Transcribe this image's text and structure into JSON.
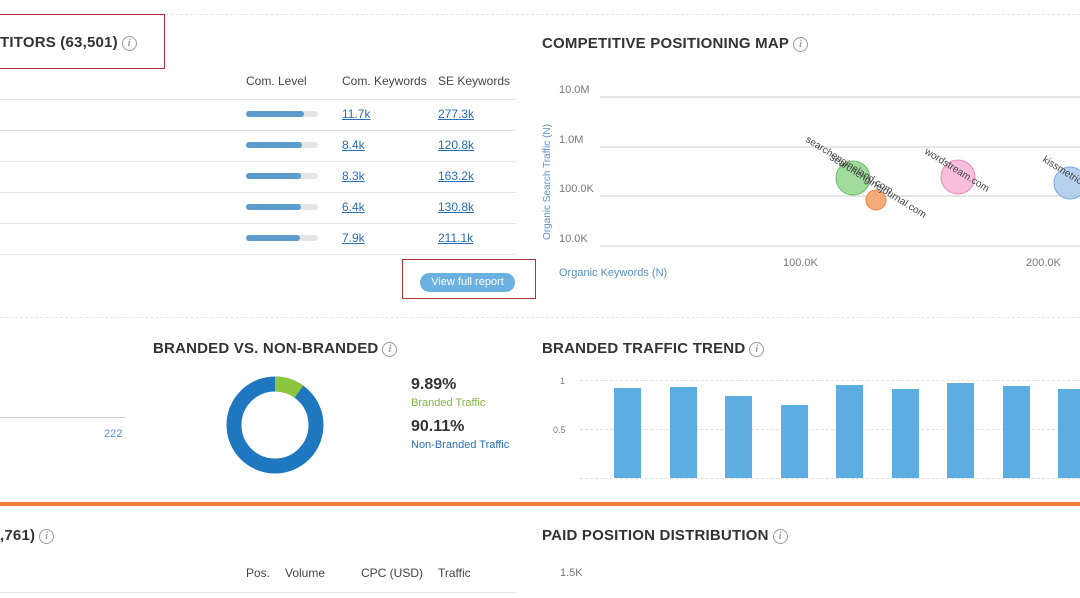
{
  "competitors": {
    "title": "TITORS (63,501)",
    "info": "i",
    "columns": {
      "level": "Com. Level",
      "com_keywords": "Com. Keywords",
      "se_keywords": "SE Keywords"
    },
    "rows": [
      {
        "level": 0.8,
        "com_keywords": "11.7k",
        "se_keywords": "277.3k"
      },
      {
        "level": 0.78,
        "com_keywords": "8.4k",
        "se_keywords": "120.8k"
      },
      {
        "level": 0.76,
        "com_keywords": "8.3k",
        "se_keywords": "163.2k"
      },
      {
        "level": 0.76,
        "com_keywords": "6.4k",
        "se_keywords": "130.8k"
      },
      {
        "level": 0.75,
        "com_keywords": "7.9k",
        "se_keywords": "211.1k"
      }
    ],
    "view_full_report": "View full report"
  },
  "positioning_map": {
    "title": "COMPETITIVE POSITIONING MAP",
    "info": "i",
    "y_axis_label": "Organic Search Traffic (N)",
    "x_axis_label": "Organic Keywords (N)",
    "y_ticks": [
      "10.0M",
      "1.0M",
      "100.0K",
      "10.0K"
    ],
    "x_ticks": [
      "100.0K",
      "200.0K"
    ],
    "bubbles": [
      {
        "label": "searchengineland.com",
        "color": "#8fd68a"
      },
      {
        "label": "searchenginejournal.com",
        "color": "#f5a36b"
      },
      {
        "label": "wordstream.com",
        "color": "#f7b3d6"
      },
      {
        "label": "kissmetrics",
        "color": "#a9c8ea"
      }
    ]
  },
  "left_fragment": {
    "value": "222"
  },
  "branded": {
    "title": "BRANDED VS. NON-BRANDED",
    "info": "i",
    "branded_pct": "9.89%",
    "branded_label": "Branded Traffic",
    "branded_color": "#8cc63f",
    "branded_fraction": 0.0989,
    "non_branded_pct": "90.11%",
    "non_branded_label": "Non-Branded Traffic",
    "non_branded_color": "#1f77c0"
  },
  "trend": {
    "title": "BRANDED TRAFFIC TREND",
    "info": "i",
    "y_ticks": [
      "1",
      "0.5"
    ],
    "values": [
      0.92,
      0.93,
      0.84,
      0.75,
      0.95,
      0.91,
      0.97,
      0.94,
      0.91
    ],
    "bar_color": "#5dade2"
  },
  "paid_keywords": {
    "title": ",761)",
    "info": "i",
    "columns": {
      "pos": "Pos.",
      "volume": "Volume",
      "cpc": "CPC (USD)",
      "traffic": "Traffic"
    }
  },
  "paid_distribution": {
    "title": "PAID POSITION DISTRIBUTION",
    "info": "i",
    "y_tick": "1.5K"
  },
  "colors": {
    "accent_orange": "#f07c37",
    "highlight_red": "#b0333a",
    "link_blue": "#2a6eb5"
  }
}
